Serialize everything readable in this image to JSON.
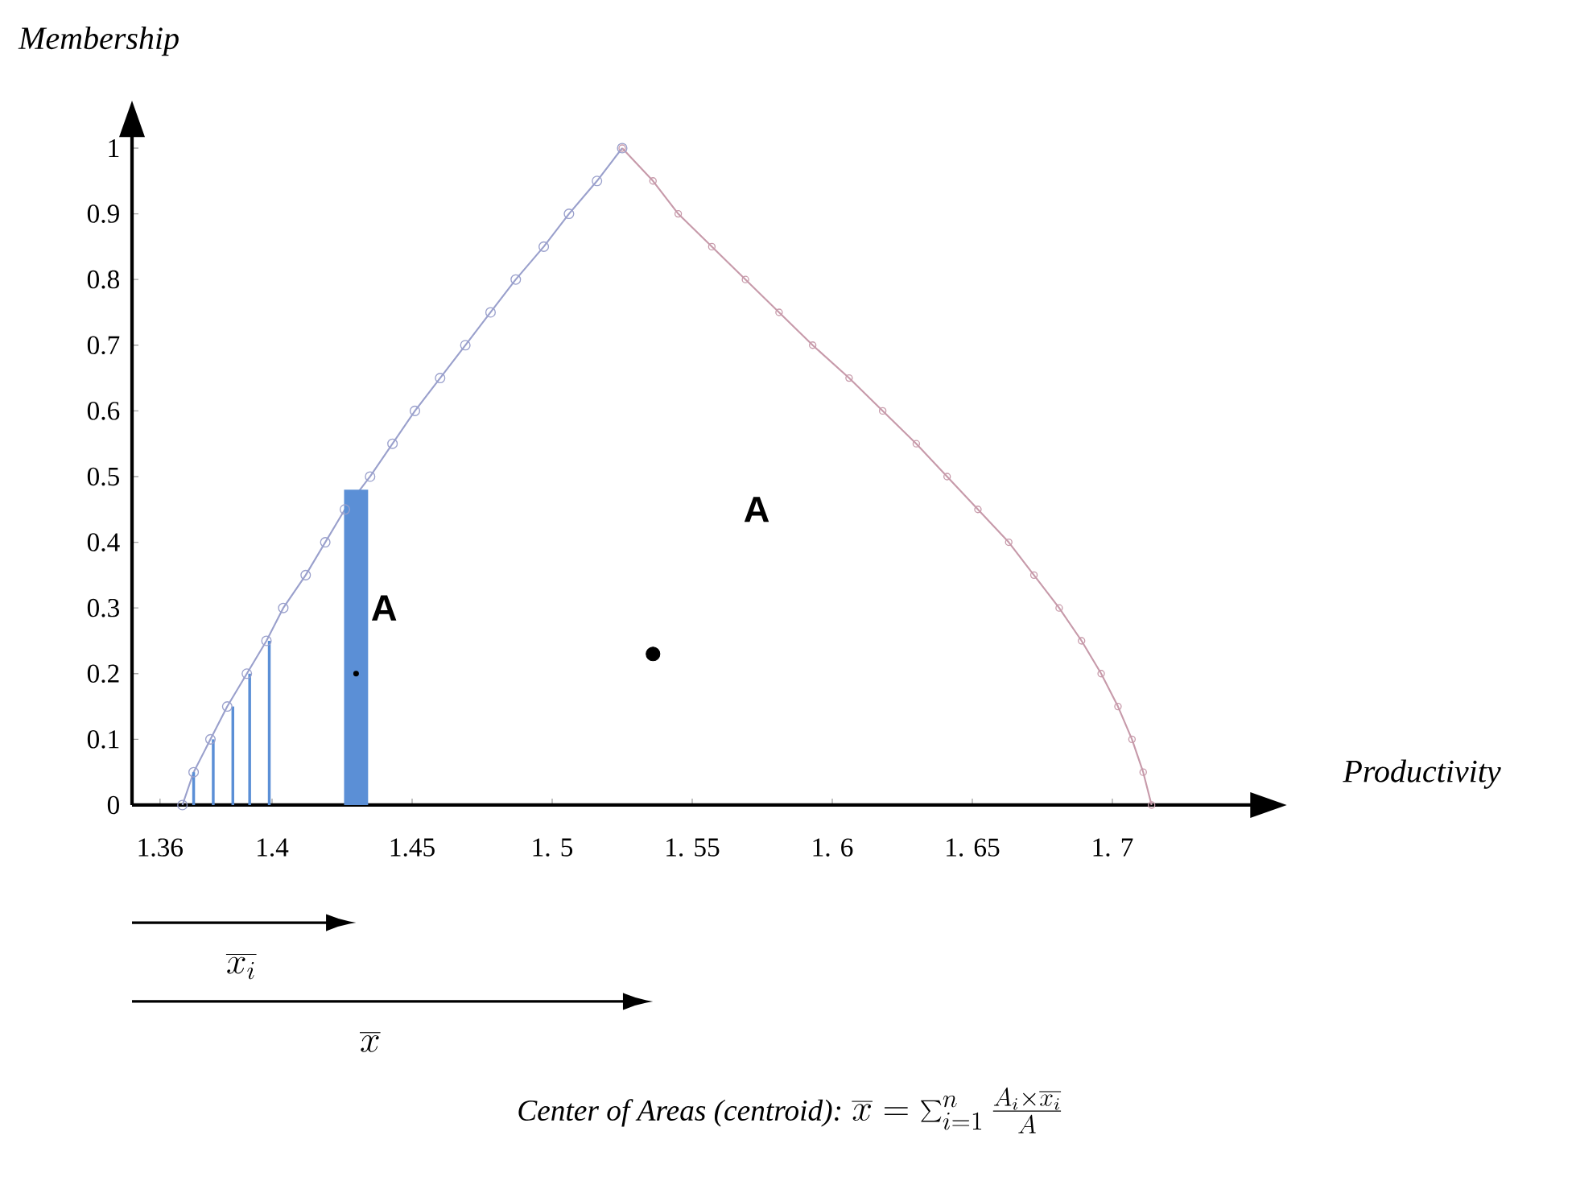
{
  "chart_data": {
    "type": "line",
    "xlabel": "Productivity",
    "ylabel": "Membership",
    "xlim": [
      1.35,
      1.75
    ],
    "ylim": [
      0,
      1.02
    ],
    "xticks": [
      1.36,
      1.4,
      1.45,
      {
        "value": 1.5,
        "label": "1. 5"
      },
      {
        "value": 1.55,
        "label": "1. 55"
      },
      {
        "value": 1.6,
        "label": "1. 6"
      },
      {
        "value": 1.65,
        "label": "1. 65"
      },
      {
        "value": 1.7,
        "label": "1. 7"
      }
    ],
    "yticks": [
      0,
      0.1,
      0.2,
      0.3,
      0.4,
      0.5,
      0.6,
      0.7,
      0.8,
      0.9,
      1
    ],
    "marker": "circle",
    "series": [
      {
        "color": "#9aa0cc",
        "x": [
          1.368,
          1.372,
          1.378,
          1.384,
          1.391,
          1.398,
          1.404,
          1.412,
          1.419,
          1.426,
          1.435,
          1.443,
          1.451,
          1.46,
          1.469,
          1.478,
          1.487,
          1.497,
          1.506,
          1.516,
          1.525
        ],
        "values": [
          0,
          0.05,
          0.1,
          0.15,
          0.2,
          0.25,
          0.3,
          0.35,
          0.4,
          0.45,
          0.5,
          0.55,
          0.6,
          0.65,
          0.7,
          0.75,
          0.8,
          0.85,
          0.9,
          0.95,
          1
        ]
      },
      {
        "color": "#c79aaa",
        "x": [
          1.525,
          1.536,
          1.545,
          1.557,
          1.569,
          1.581,
          1.593,
          1.606,
          1.618,
          1.63,
          1.641,
          1.652,
          1.663,
          1.672,
          1.681,
          1.689,
          1.696,
          1.702,
          1.707,
          1.711,
          1.714
        ],
        "values": [
          1,
          0.95,
          0.9,
          0.85,
          0.8,
          0.75,
          0.7,
          0.65,
          0.6,
          0.55,
          0.5,
          0.45,
          0.4,
          0.35,
          0.3,
          0.25,
          0.2,
          0.15,
          0.1,
          0.05,
          0
        ]
      },
      {
        "type": "bar",
        "color": "#5b8fd6",
        "x": [
          1.372,
          1.379,
          1.386,
          1.392,
          1.399
        ],
        "values": [
          0.05,
          0.1,
          0.15,
          0.2,
          0.25
        ]
      },
      {
        "type": "bar",
        "color": "#5b8fd6",
        "x": [
          1.43
        ],
        "values": [
          0.48
        ]
      },
      {
        "type": "scatter",
        "color": "#000000",
        "x": [
          1.43
        ],
        "values": [
          0.2
        ]
      },
      {
        "type": "scatter",
        "color": "#000000",
        "x": [
          1.536
        ],
        "values": [
          0.23
        ]
      }
    ],
    "annotations": [
      "A",
      "A",
      "\\overline{x_i}",
      "\\overline{x}",
      "Center of Areas (centroid):",
      "\\overline{x} = \\sum_{i=1}^{n} \\frac{A_i \\times \\overline{x_i}}{A}"
    ]
  }
}
